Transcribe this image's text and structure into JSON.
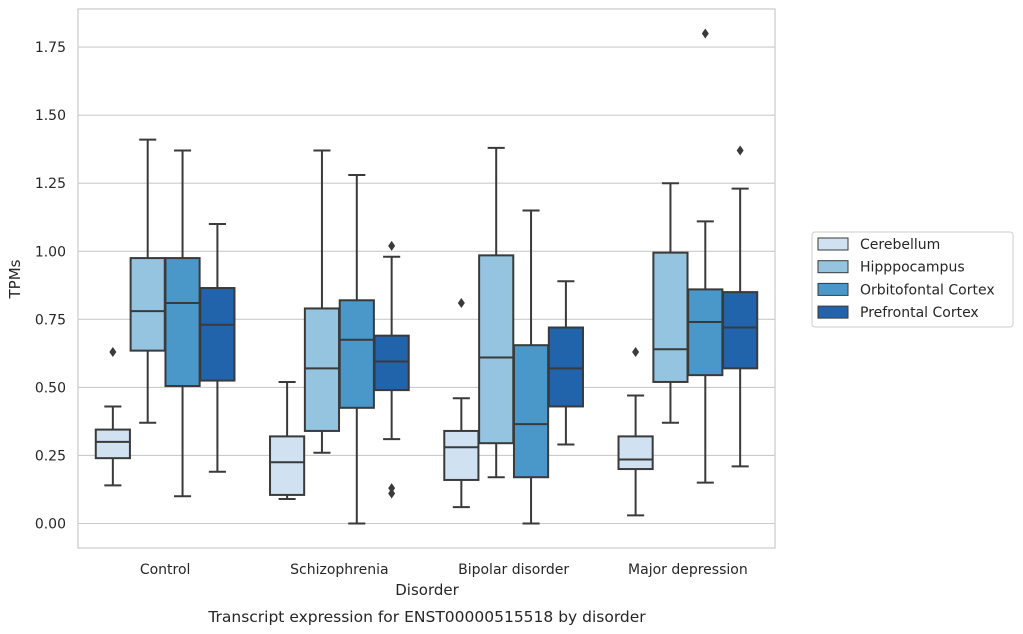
{
  "chart_data": {
    "type": "boxplot",
    "title": "",
    "xlabel": "Disorder",
    "ylabel": "TPMs",
    "caption": "Transcript expression for ENST00000515518 by disorder",
    "ylim": [
      -0.09,
      1.89
    ],
    "yticks": [
      0.0,
      0.25,
      0.5,
      0.75,
      1.0,
      1.25,
      1.5,
      1.75
    ],
    "ytick_labels": [
      "0.00",
      "0.25",
      "0.50",
      "0.75",
      "1.00",
      "1.25",
      "1.50",
      "1.75"
    ],
    "grid": "horizontal",
    "legend_position": "right",
    "categories": [
      "Control",
      "Schizophrenia",
      "Bipolar disorder",
      "Major depression"
    ],
    "series": [
      {
        "name": "Cerebellum",
        "color": "#d0e1f2",
        "boxes": [
          {
            "whislo": 0.14,
            "q1": 0.24,
            "med": 0.3,
            "q3": 0.345,
            "whishi": 0.43,
            "fliers": [
              0.63
            ]
          },
          {
            "whislo": 0.09,
            "q1": 0.105,
            "med": 0.225,
            "q3": 0.32,
            "whishi": 0.52,
            "fliers": []
          },
          {
            "whislo": 0.06,
            "q1": 0.16,
            "med": 0.28,
            "q3": 0.34,
            "whishi": 0.46,
            "fliers": [
              0.81
            ]
          },
          {
            "whislo": 0.03,
            "q1": 0.2,
            "med": 0.235,
            "q3": 0.32,
            "whishi": 0.47,
            "fliers": [
              0.63
            ]
          }
        ]
      },
      {
        "name": "Hipppocampus",
        "color": "#94c4df",
        "boxes": [
          {
            "whislo": 0.37,
            "q1": 0.635,
            "med": 0.78,
            "q3": 0.975,
            "whishi": 1.41,
            "fliers": []
          },
          {
            "whislo": 0.26,
            "q1": 0.34,
            "med": 0.57,
            "q3": 0.79,
            "whishi": 1.37,
            "fliers": []
          },
          {
            "whislo": 0.17,
            "q1": 0.295,
            "med": 0.61,
            "q3": 0.985,
            "whishi": 1.38,
            "fliers": []
          },
          {
            "whislo": 0.37,
            "q1": 0.52,
            "med": 0.64,
            "q3": 0.995,
            "whishi": 1.25,
            "fliers": []
          }
        ]
      },
      {
        "name": "Orbitofontal Cortex",
        "color": "#4a98c9",
        "boxes": [
          {
            "whislo": 0.1,
            "q1": 0.505,
            "med": 0.81,
            "q3": 0.975,
            "whishi": 1.37,
            "fliers": []
          },
          {
            "whislo": 0.0,
            "q1": 0.425,
            "med": 0.675,
            "q3": 0.82,
            "whishi": 1.28,
            "fliers": []
          },
          {
            "whislo": 0.0,
            "q1": 0.17,
            "med": 0.365,
            "q3": 0.655,
            "whishi": 1.15,
            "fliers": []
          },
          {
            "whislo": 0.15,
            "q1": 0.545,
            "med": 0.74,
            "q3": 0.86,
            "whishi": 1.11,
            "fliers": [
              1.8
            ]
          }
        ]
      },
      {
        "name": "Prefrontal Cortex",
        "color": "#2164ab",
        "boxes": [
          {
            "whislo": 0.19,
            "q1": 0.525,
            "med": 0.73,
            "q3": 0.865,
            "whishi": 1.1,
            "fliers": []
          },
          {
            "whislo": 0.31,
            "q1": 0.49,
            "med": 0.595,
            "q3": 0.69,
            "whishi": 0.98,
            "fliers": [
              0.11,
              0.13,
              1.02
            ]
          },
          {
            "whislo": 0.29,
            "q1": 0.43,
            "med": 0.57,
            "q3": 0.72,
            "whishi": 0.89,
            "fliers": []
          },
          {
            "whislo": 0.21,
            "q1": 0.57,
            "med": 0.72,
            "q3": 0.85,
            "whishi": 1.23,
            "fliers": [
              1.37
            ]
          }
        ]
      }
    ]
  },
  "colors": {
    "edge": "#3a3a3a",
    "grid": "#cccccc",
    "spine": "#cccccc",
    "text": "#262626"
  }
}
